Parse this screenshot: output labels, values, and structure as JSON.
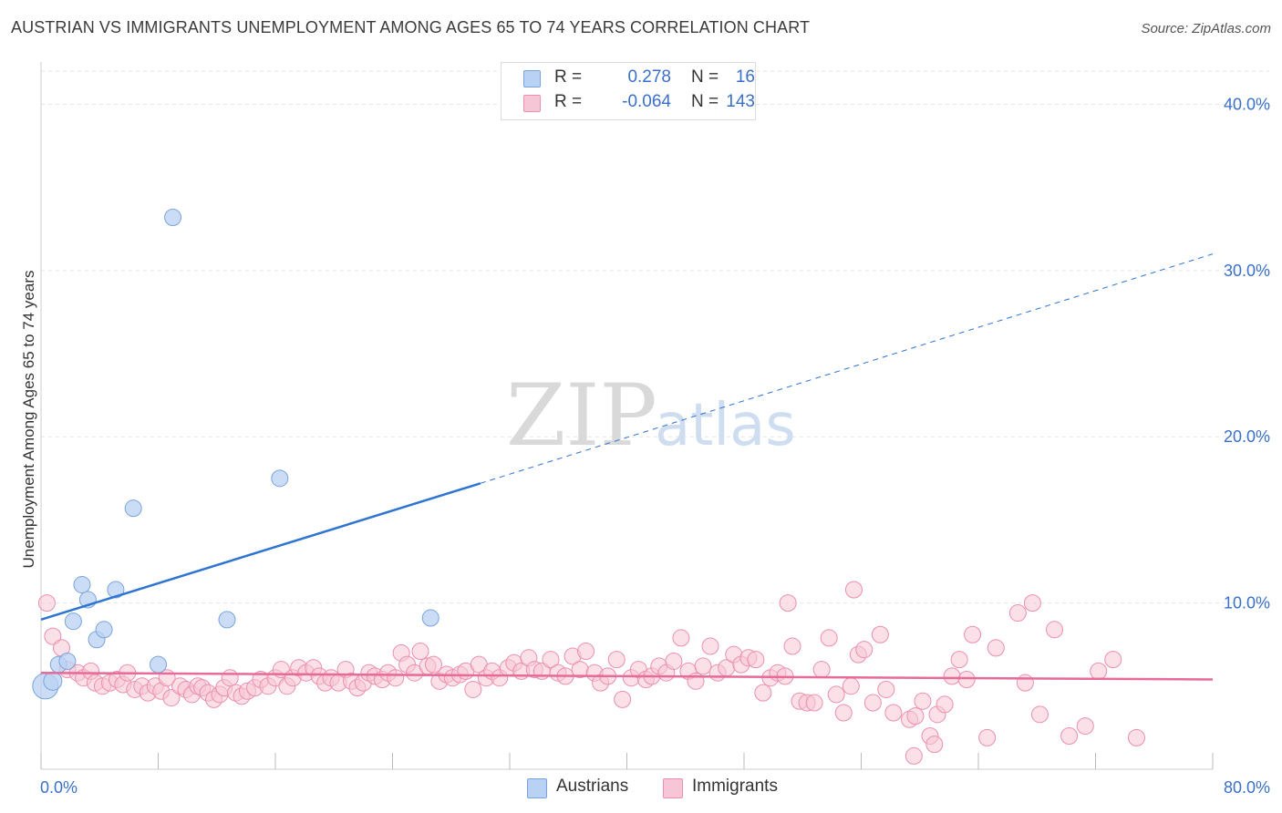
{
  "title": "AUSTRIAN VS IMMIGRANTS UNEMPLOYMENT AMONG AGES 65 TO 74 YEARS CORRELATION CHART",
  "source": "Source: ZipAtlas.com",
  "watermark": {
    "zip": "ZIP",
    "atlas": "atlas"
  },
  "colors": {
    "austrians_fill": "#b9d2f3",
    "austrians_stroke": "#7aa3dc",
    "austrians_line": "#2e74d0",
    "immigrants_fill": "#f7c6d6",
    "immigrants_stroke": "#ec8fae",
    "immigrants_line": "#e66b98",
    "tick_label": "#3a70c8",
    "grid": "#e6e6e6"
  },
  "stats": [
    {
      "r_label": "R =",
      "r_value": "0.278",
      "n_label": "N =",
      "n_value": "16",
      "color": "#b9d2f3",
      "border": "#7aa3dc"
    },
    {
      "r_label": "R =",
      "r_value": "-0.064",
      "n_label": "N =",
      "n_value": "143",
      "color": "#f7c6d6",
      "border": "#ec8fae"
    }
  ],
  "legend": [
    {
      "name": "Austrians",
      "color": "#b9d2f3",
      "border": "#7aa3dc"
    },
    {
      "name": "Immigrants",
      "color": "#f7c6d6",
      "border": "#ec8fae"
    }
  ],
  "chart_data": {
    "type": "scatter",
    "title": "AUSTRIAN VS IMMIGRANTS UNEMPLOYMENT AMONG AGES 65 TO 74 YEARS CORRELATION CHART",
    "xlabel": "",
    "ylabel": "Unemployment Among Ages 65 to 74 years",
    "xlim": [
      0,
      80
    ],
    "ylim": [
      0,
      42
    ],
    "x_tick_labels": [
      "0.0%",
      "80.0%"
    ],
    "y_ticks": [
      10,
      20,
      30,
      40
    ],
    "y_tick_labels": [
      "10.0%",
      "20.0%",
      "30.0%",
      "40.0%"
    ],
    "grid": true,
    "legend_position": "bottom-center",
    "series": [
      {
        "name": "Austrians",
        "trend": {
          "x": [
            0,
            30,
            80
          ],
          "y": [
            9.0,
            17.2,
            31.0
          ],
          "solid_until_x": 30
        },
        "points": [
          [
            0.3,
            5.0,
            14
          ],
          [
            0.8,
            5.3,
            10
          ],
          [
            1.2,
            6.3,
            9
          ],
          [
            1.8,
            6.5,
            9
          ],
          [
            2.2,
            8.9,
            9
          ],
          [
            2.8,
            11.1,
            9
          ],
          [
            3.2,
            10.2,
            9
          ],
          [
            3.8,
            7.8,
            9
          ],
          [
            4.3,
            8.4,
            9
          ],
          [
            5.1,
            10.8,
            9
          ],
          [
            6.3,
            15.7,
            9
          ],
          [
            8.0,
            6.3,
            9
          ],
          [
            9.0,
            33.2,
            9
          ],
          [
            12.7,
            9.0,
            9
          ],
          [
            16.3,
            17.5,
            9
          ],
          [
            26.6,
            9.1,
            9
          ]
        ]
      },
      {
        "name": "Immigrants",
        "trend": {
          "x": [
            0,
            80
          ],
          "y": [
            5.8,
            5.4
          ]
        },
        "points": [
          [
            0.4,
            10.0,
            9
          ],
          [
            0.8,
            8.0,
            9
          ],
          [
            1.4,
            7.3,
            9
          ],
          [
            1.8,
            6.0,
            9
          ],
          [
            2.5,
            5.8,
            9
          ],
          [
            2.9,
            5.5,
            9
          ],
          [
            3.4,
            5.9,
            9
          ],
          [
            3.7,
            5.2,
            9
          ],
          [
            4.2,
            5.0,
            9
          ],
          [
            4.7,
            5.2,
            9
          ],
          [
            5.2,
            5.4,
            9
          ],
          [
            5.6,
            5.1,
            9
          ],
          [
            5.9,
            5.8,
            9
          ],
          [
            6.4,
            4.8,
            9
          ],
          [
            6.9,
            5.0,
            9
          ],
          [
            7.3,
            4.6,
            9
          ],
          [
            7.8,
            5.0,
            9
          ],
          [
            8.2,
            4.7,
            9
          ],
          [
            8.6,
            5.5,
            9
          ],
          [
            8.9,
            4.3,
            9
          ],
          [
            9.5,
            5.0,
            9
          ],
          [
            9.9,
            4.8,
            9
          ],
          [
            10.3,
            4.5,
            9
          ],
          [
            10.7,
            5.0,
            9
          ],
          [
            11.0,
            4.9,
            9
          ],
          [
            11.4,
            4.6,
            9
          ],
          [
            11.8,
            4.2,
            9
          ],
          [
            12.2,
            4.5,
            9
          ],
          [
            12.5,
            4.9,
            9
          ],
          [
            12.9,
            5.5,
            9
          ],
          [
            13.3,
            4.6,
            9
          ],
          [
            13.7,
            4.4,
            9
          ],
          [
            14.1,
            4.7,
            9
          ],
          [
            14.6,
            4.9,
            9
          ],
          [
            15.0,
            5.4,
            9
          ],
          [
            15.5,
            5.0,
            9
          ],
          [
            16.0,
            5.5,
            9
          ],
          [
            16.4,
            6.0,
            9
          ],
          [
            16.8,
            5.0,
            9
          ],
          [
            17.2,
            5.5,
            9
          ],
          [
            17.6,
            6.1,
            9
          ],
          [
            18.1,
            5.8,
            9
          ],
          [
            18.6,
            6.1,
            9
          ],
          [
            19.0,
            5.6,
            9
          ],
          [
            19.4,
            5.2,
            9
          ],
          [
            19.8,
            5.5,
            9
          ],
          [
            20.3,
            5.2,
            9
          ],
          [
            20.8,
            6.0,
            9
          ],
          [
            21.2,
            5.3,
            9
          ],
          [
            21.6,
            4.9,
            9
          ],
          [
            22.0,
            5.2,
            9
          ],
          [
            22.4,
            5.8,
            9
          ],
          [
            22.8,
            5.6,
            9
          ],
          [
            23.3,
            5.4,
            9
          ],
          [
            23.7,
            5.8,
            9
          ],
          [
            24.2,
            5.5,
            9
          ],
          [
            24.6,
            7.0,
            9
          ],
          [
            25.0,
            6.3,
            9
          ],
          [
            25.5,
            5.8,
            9
          ],
          [
            25.9,
            7.1,
            9
          ],
          [
            26.4,
            6.2,
            9
          ],
          [
            26.8,
            6.3,
            9
          ],
          [
            27.2,
            5.3,
            9
          ],
          [
            27.7,
            5.7,
            9
          ],
          [
            28.1,
            5.5,
            9
          ],
          [
            28.6,
            5.7,
            9
          ],
          [
            29.0,
            5.9,
            9
          ],
          [
            29.5,
            4.8,
            9
          ],
          [
            29.9,
            6.3,
            9
          ],
          [
            30.4,
            5.5,
            9
          ],
          [
            30.8,
            5.9,
            9
          ],
          [
            31.3,
            5.5,
            9
          ],
          [
            31.9,
            6.1,
            9
          ],
          [
            32.3,
            6.4,
            9
          ],
          [
            32.8,
            5.9,
            9
          ],
          [
            33.3,
            6.7,
            9
          ],
          [
            33.7,
            6.0,
            9
          ],
          [
            34.2,
            5.9,
            9
          ],
          [
            34.8,
            6.6,
            9
          ],
          [
            35.3,
            5.8,
            9
          ],
          [
            35.8,
            5.6,
            9
          ],
          [
            36.3,
            6.8,
            9
          ],
          [
            36.8,
            6.0,
            9
          ],
          [
            37.2,
            7.1,
            9
          ],
          [
            37.8,
            5.8,
            9
          ],
          [
            38.2,
            5.2,
            9
          ],
          [
            38.7,
            5.6,
            9
          ],
          [
            39.3,
            6.6,
            9
          ],
          [
            39.7,
            4.2,
            9
          ],
          [
            40.3,
            5.5,
            9
          ],
          [
            40.8,
            6.0,
            9
          ],
          [
            41.3,
            5.4,
            9
          ],
          [
            41.7,
            5.6,
            9
          ],
          [
            42.2,
            6.2,
            9
          ],
          [
            42.7,
            5.8,
            9
          ],
          [
            43.2,
            6.5,
            9
          ],
          [
            43.7,
            7.9,
            9
          ],
          [
            44.2,
            5.9,
            9
          ],
          [
            44.7,
            5.3,
            9
          ],
          [
            45.2,
            6.2,
            9
          ],
          [
            45.7,
            7.4,
            9
          ],
          [
            46.2,
            5.8,
            9
          ],
          [
            46.8,
            6.1,
            9
          ],
          [
            47.3,
            6.9,
            9
          ],
          [
            47.8,
            6.3,
            9
          ],
          [
            48.3,
            6.7,
            9
          ],
          [
            48.8,
            6.6,
            9
          ],
          [
            49.3,
            4.6,
            9
          ],
          [
            49.8,
            5.5,
            9
          ],
          [
            50.3,
            5.8,
            9
          ],
          [
            50.8,
            5.6,
            9
          ],
          [
            51.3,
            7.4,
            9
          ],
          [
            51.8,
            4.1,
            9
          ],
          [
            52.3,
            4.0,
            9
          ],
          [
            52.8,
            4.0,
            9
          ],
          [
            53.3,
            6.0,
            9
          ],
          [
            53.8,
            7.9,
            9
          ],
          [
            54.3,
            4.5,
            9
          ],
          [
            54.8,
            3.4,
            9
          ],
          [
            55.3,
            5.0,
            9
          ],
          [
            55.8,
            6.9,
            9
          ],
          [
            56.2,
            7.2,
            9
          ],
          [
            56.8,
            4.0,
            9
          ],
          [
            57.3,
            8.1,
            9
          ],
          [
            57.7,
            4.8,
            9
          ],
          [
            58.2,
            3.4,
            9
          ],
          [
            59.3,
            3.0,
            9
          ],
          [
            59.7,
            3.2,
            9
          ],
          [
            60.2,
            4.1,
            9
          ],
          [
            60.7,
            2.0,
            9
          ],
          [
            61.2,
            3.3,
            9
          ],
          [
            61.7,
            3.9,
            9
          ],
          [
            62.2,
            5.6,
            9
          ],
          [
            62.7,
            6.6,
            9
          ],
          [
            63.2,
            5.4,
            9
          ],
          [
            63.6,
            8.1,
            9
          ],
          [
            64.6,
            1.9,
            9
          ],
          [
            65.2,
            7.3,
            9
          ],
          [
            66.7,
            9.4,
            9
          ],
          [
            67.2,
            5.2,
            9
          ],
          [
            67.7,
            10.0,
            9
          ],
          [
            68.2,
            3.3,
            9
          ],
          [
            69.2,
            8.4,
            9
          ],
          [
            70.2,
            2.0,
            9
          ],
          [
            71.3,
            2.6,
            9
          ],
          [
            72.2,
            5.9,
            9
          ],
          [
            73.2,
            6.6,
            9
          ],
          [
            74.8,
            1.9,
            9
          ],
          [
            61.0,
            1.5,
            9
          ],
          [
            59.6,
            0.8,
            9
          ],
          [
            55.5,
            10.8,
            9
          ],
          [
            51.0,
            10.0,
            9
          ]
        ]
      }
    ]
  }
}
